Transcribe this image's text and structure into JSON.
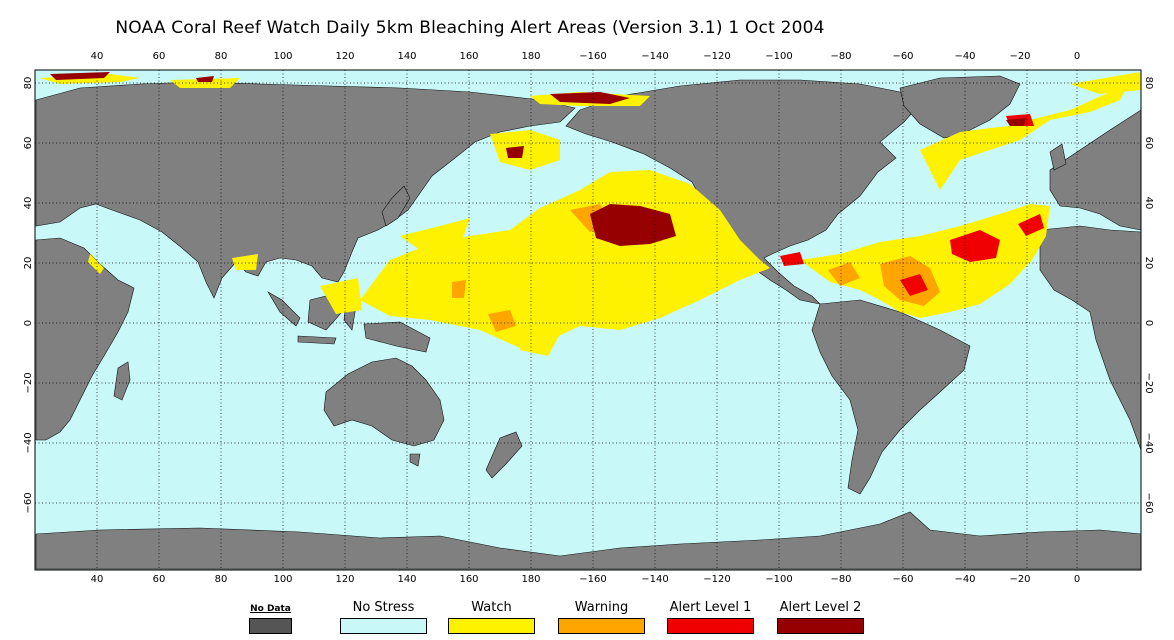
{
  "title": "NOAA Coral Reef Watch Daily 5km Bleaching Alert Areas (Version 3.1)  1 Oct 2004",
  "top_lon_ticks": [
    "40",
    "60",
    "80",
    "100",
    "120",
    "140",
    "160",
    "180",
    "−160",
    "−140",
    "−120",
    "−100",
    "−80",
    "−60",
    "−40",
    "−20",
    "0"
  ],
  "bottom_lon_ticks": [
    "40",
    "60",
    "80",
    "100",
    "120",
    "140",
    "160",
    "180",
    "−160",
    "−140",
    "−120",
    "−100",
    "−80",
    "−60",
    "−40",
    "−20",
    "0"
  ],
  "left_lat_ticks": [
    "80",
    "60",
    "40",
    "20",
    "0",
    "−20",
    "−40",
    "−60"
  ],
  "right_lat_ticks": [
    "80",
    "60",
    "40",
    "20",
    "0",
    "−20",
    "−40",
    "−60"
  ],
  "colors": {
    "ocean": "#c8f8f8",
    "land": "#808080",
    "no_data": "#555555",
    "no_stress": "#c8f8f8",
    "watch": "#fff200",
    "warning": "#ffa500",
    "alert1": "#f00000",
    "alert2": "#960000"
  },
  "legend": [
    {
      "label": "No Data",
      "color": "#555555"
    },
    {
      "label": "No Stress",
      "color": "#c8f8f8"
    },
    {
      "label": "Watch",
      "color": "#fff200"
    },
    {
      "label": "Warning",
      "color": "#ffa500"
    },
    {
      "label": "Alert Level 1",
      "color": "#f00000"
    },
    {
      "label": "Alert Level 2",
      "color": "#960000"
    }
  ]
}
